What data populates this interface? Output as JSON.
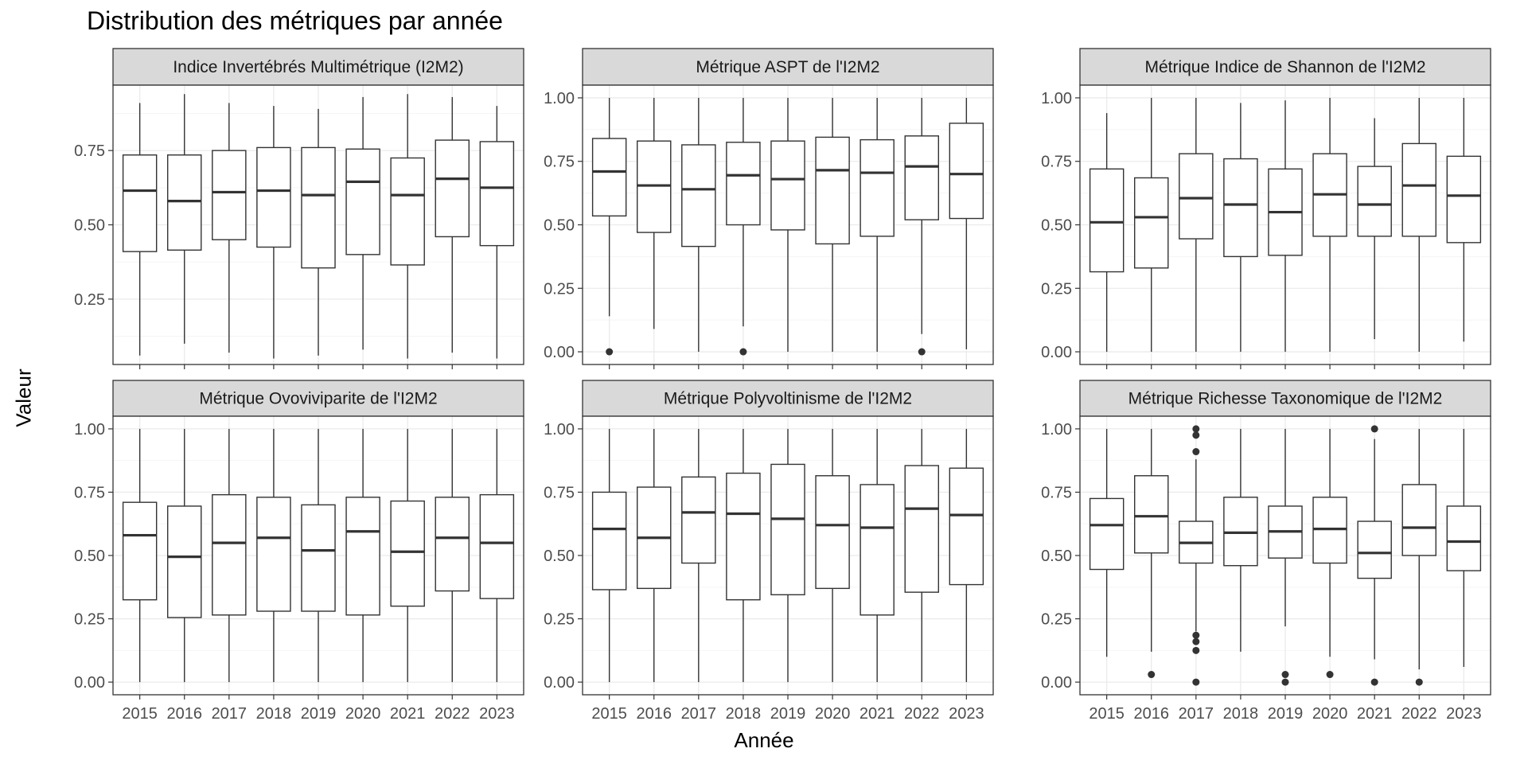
{
  "title": "Distribution des métriques par année",
  "xlabel": "Année",
  "ylabel": "Valeur",
  "colors": {
    "strip_fill": "#d9d9d9",
    "panel_border": "#333333",
    "grid_major": "#ebebeb",
    "grid_minor": "#f5f5f5",
    "box_stroke": "#333333",
    "tick_text": "#4d4d4d"
  },
  "chart_data": [
    {
      "type": "boxplot",
      "title": "Indice Invertébrés Multimétrique (I2M2)",
      "categories": [
        "2015",
        "2016",
        "2017",
        "2018",
        "2019",
        "2020",
        "2021",
        "2022",
        "2023"
      ],
      "ylim": [
        0.03,
        0.97
      ],
      "yticks": [
        0.25,
        0.5,
        0.75
      ],
      "ytick_labels": [
        "0.25",
        "0.50",
        "0.75"
      ],
      "boxes": [
        {
          "min": 0.06,
          "q1": 0.41,
          "median": 0.615,
          "q3": 0.735,
          "max": 0.91,
          "outliers": []
        },
        {
          "min": 0.1,
          "q1": 0.415,
          "median": 0.58,
          "q3": 0.735,
          "max": 0.94,
          "outliers": []
        },
        {
          "min": 0.07,
          "q1": 0.45,
          "median": 0.61,
          "q3": 0.75,
          "max": 0.91,
          "outliers": []
        },
        {
          "min": 0.05,
          "q1": 0.425,
          "median": 0.615,
          "q3": 0.76,
          "max": 0.9,
          "outliers": []
        },
        {
          "min": 0.06,
          "q1": 0.355,
          "median": 0.6,
          "q3": 0.76,
          "max": 0.89,
          "outliers": []
        },
        {
          "min": 0.08,
          "q1": 0.4,
          "median": 0.645,
          "q3": 0.755,
          "max": 0.93,
          "outliers": []
        },
        {
          "min": 0.05,
          "q1": 0.365,
          "median": 0.6,
          "q3": 0.725,
          "max": 0.94,
          "outliers": []
        },
        {
          "min": 0.07,
          "q1": 0.46,
          "median": 0.655,
          "q3": 0.785,
          "max": 0.93,
          "outliers": []
        },
        {
          "min": 0.05,
          "q1": 0.43,
          "median": 0.625,
          "q3": 0.78,
          "max": 0.9,
          "outliers": []
        }
      ]
    },
    {
      "type": "boxplot",
      "title": "Métrique ASPT de l'I2M2",
      "categories": [
        "2015",
        "2016",
        "2017",
        "2018",
        "2019",
        "2020",
        "2021",
        "2022",
        "2023"
      ],
      "ylim": [
        -0.05,
        1.05
      ],
      "yticks": [
        0,
        0.25,
        0.5,
        0.75,
        1.0
      ],
      "ytick_labels": [
        "0.00",
        "0.25",
        "0.50",
        "0.75",
        "1.00"
      ],
      "boxes": [
        {
          "min": 0.14,
          "q1": 0.535,
          "median": 0.71,
          "q3": 0.84,
          "max": 1.0,
          "outliers": [
            0.0
          ]
        },
        {
          "min": 0.09,
          "q1": 0.47,
          "median": 0.655,
          "q3": 0.83,
          "max": 1.0,
          "outliers": []
        },
        {
          "min": 0.0,
          "q1": 0.415,
          "median": 0.64,
          "q3": 0.815,
          "max": 1.0,
          "outliers": []
        },
        {
          "min": 0.1,
          "q1": 0.5,
          "median": 0.695,
          "q3": 0.825,
          "max": 1.0,
          "outliers": [
            0.0
          ]
        },
        {
          "min": 0.0,
          "q1": 0.48,
          "median": 0.68,
          "q3": 0.83,
          "max": 1.0,
          "outliers": []
        },
        {
          "min": 0.0,
          "q1": 0.425,
          "median": 0.715,
          "q3": 0.845,
          "max": 1.0,
          "outliers": []
        },
        {
          "min": 0.0,
          "q1": 0.455,
          "median": 0.705,
          "q3": 0.835,
          "max": 1.0,
          "outliers": []
        },
        {
          "min": 0.07,
          "q1": 0.52,
          "median": 0.73,
          "q3": 0.85,
          "max": 1.0,
          "outliers": [
            0.0
          ]
        },
        {
          "min": 0.01,
          "q1": 0.525,
          "median": 0.7,
          "q3": 0.9,
          "max": 1.0,
          "outliers": []
        }
      ]
    },
    {
      "type": "boxplot",
      "title": "Métrique Indice de Shannon de l'I2M2",
      "categories": [
        "2015",
        "2016",
        "2017",
        "2018",
        "2019",
        "2020",
        "2021",
        "2022",
        "2023"
      ],
      "ylim": [
        -0.05,
        1.05
      ],
      "yticks": [
        0,
        0.25,
        0.5,
        0.75,
        1.0
      ],
      "ytick_labels": [
        "0.00",
        "0.25",
        "0.50",
        "0.75",
        "1.00"
      ],
      "boxes": [
        {
          "min": 0.0,
          "q1": 0.315,
          "median": 0.51,
          "q3": 0.72,
          "max": 0.94,
          "outliers": []
        },
        {
          "min": 0.0,
          "q1": 0.33,
          "median": 0.53,
          "q3": 0.685,
          "max": 1.0,
          "outliers": []
        },
        {
          "min": 0.0,
          "q1": 0.445,
          "median": 0.605,
          "q3": 0.78,
          "max": 1.0,
          "outliers": []
        },
        {
          "min": 0.0,
          "q1": 0.375,
          "median": 0.58,
          "q3": 0.76,
          "max": 0.98,
          "outliers": []
        },
        {
          "min": 0.0,
          "q1": 0.38,
          "median": 0.55,
          "q3": 0.72,
          "max": 0.99,
          "outliers": []
        },
        {
          "min": 0.0,
          "q1": 0.455,
          "median": 0.62,
          "q3": 0.78,
          "max": 1.0,
          "outliers": []
        },
        {
          "min": 0.05,
          "q1": 0.455,
          "median": 0.58,
          "q3": 0.73,
          "max": 0.92,
          "outliers": []
        },
        {
          "min": 0.0,
          "q1": 0.455,
          "median": 0.655,
          "q3": 0.82,
          "max": 1.0,
          "outliers": []
        },
        {
          "min": 0.04,
          "q1": 0.43,
          "median": 0.615,
          "q3": 0.77,
          "max": 1.0,
          "outliers": []
        }
      ]
    },
    {
      "type": "boxplot",
      "title": "Métrique Ovoviviparite de l'I2M2",
      "categories": [
        "2015",
        "2016",
        "2017",
        "2018",
        "2019",
        "2020",
        "2021",
        "2022",
        "2023"
      ],
      "ylim": [
        -0.05,
        1.05
      ],
      "yticks": [
        0,
        0.25,
        0.5,
        0.75,
        1.0
      ],
      "ytick_labels": [
        "0.00",
        "0.25",
        "0.50",
        "0.75",
        "1.00"
      ],
      "boxes": [
        {
          "min": 0.0,
          "q1": 0.325,
          "median": 0.58,
          "q3": 0.71,
          "max": 1.0,
          "outliers": []
        },
        {
          "min": 0.0,
          "q1": 0.255,
          "median": 0.495,
          "q3": 0.695,
          "max": 1.0,
          "outliers": []
        },
        {
          "min": 0.0,
          "q1": 0.265,
          "median": 0.55,
          "q3": 0.74,
          "max": 1.0,
          "outliers": []
        },
        {
          "min": 0.0,
          "q1": 0.28,
          "median": 0.57,
          "q3": 0.73,
          "max": 1.0,
          "outliers": []
        },
        {
          "min": 0.0,
          "q1": 0.28,
          "median": 0.52,
          "q3": 0.7,
          "max": 1.0,
          "outliers": []
        },
        {
          "min": 0.0,
          "q1": 0.265,
          "median": 0.595,
          "q3": 0.73,
          "max": 1.0,
          "outliers": []
        },
        {
          "min": 0.0,
          "q1": 0.3,
          "median": 0.515,
          "q3": 0.715,
          "max": 1.0,
          "outliers": []
        },
        {
          "min": 0.0,
          "q1": 0.36,
          "median": 0.57,
          "q3": 0.73,
          "max": 1.0,
          "outliers": []
        },
        {
          "min": 0.0,
          "q1": 0.33,
          "median": 0.55,
          "q3": 0.74,
          "max": 1.0,
          "outliers": []
        }
      ]
    },
    {
      "type": "boxplot",
      "title": "Métrique Polyvoltinisme de l'I2M2",
      "categories": [
        "2015",
        "2016",
        "2017",
        "2018",
        "2019",
        "2020",
        "2021",
        "2022",
        "2023"
      ],
      "ylim": [
        -0.05,
        1.05
      ],
      "yticks": [
        0,
        0.25,
        0.5,
        0.75,
        1.0
      ],
      "ytick_labels": [
        "0.00",
        "0.25",
        "0.50",
        "0.75",
        "1.00"
      ],
      "boxes": [
        {
          "min": 0.0,
          "q1": 0.365,
          "median": 0.605,
          "q3": 0.75,
          "max": 1.0,
          "outliers": []
        },
        {
          "min": 0.0,
          "q1": 0.37,
          "median": 0.57,
          "q3": 0.77,
          "max": 1.0,
          "outliers": []
        },
        {
          "min": 0.0,
          "q1": 0.47,
          "median": 0.67,
          "q3": 0.81,
          "max": 1.0,
          "outliers": []
        },
        {
          "min": 0.0,
          "q1": 0.325,
          "median": 0.665,
          "q3": 0.825,
          "max": 1.0,
          "outliers": []
        },
        {
          "min": 0.0,
          "q1": 0.345,
          "median": 0.645,
          "q3": 0.86,
          "max": 1.0,
          "outliers": []
        },
        {
          "min": 0.0,
          "q1": 0.37,
          "median": 0.62,
          "q3": 0.815,
          "max": 1.0,
          "outliers": []
        },
        {
          "min": 0.0,
          "q1": 0.265,
          "median": 0.61,
          "q3": 0.78,
          "max": 1.0,
          "outliers": []
        },
        {
          "min": 0.0,
          "q1": 0.355,
          "median": 0.685,
          "q3": 0.855,
          "max": 1.0,
          "outliers": []
        },
        {
          "min": 0.0,
          "q1": 0.385,
          "median": 0.66,
          "q3": 0.845,
          "max": 1.0,
          "outliers": []
        }
      ]
    },
    {
      "type": "boxplot",
      "title": "Métrique Richesse Taxonomique de l'I2M2",
      "categories": [
        "2015",
        "2016",
        "2017",
        "2018",
        "2019",
        "2020",
        "2021",
        "2022",
        "2023"
      ],
      "ylim": [
        -0.05,
        1.05
      ],
      "yticks": [
        0,
        0.25,
        0.5,
        0.75,
        1.0
      ],
      "ytick_labels": [
        "0.00",
        "0.25",
        "0.50",
        "0.75",
        "1.00"
      ],
      "boxes": [
        {
          "min": 0.1,
          "q1": 0.445,
          "median": 0.62,
          "q3": 0.725,
          "max": 1.0,
          "outliers": []
        },
        {
          "min": 0.12,
          "q1": 0.51,
          "median": 0.655,
          "q3": 0.815,
          "max": 1.0,
          "outliers": [
            0.03
          ]
        },
        {
          "min": 0.2,
          "q1": 0.47,
          "median": 0.55,
          "q3": 0.635,
          "max": 0.88,
          "outliers": [
            1.0,
            0.975,
            0.91,
            0.185,
            0.16,
            0.125,
            0.0
          ]
        },
        {
          "min": 0.12,
          "q1": 0.46,
          "median": 0.59,
          "q3": 0.73,
          "max": 1.0,
          "outliers": []
        },
        {
          "min": 0.22,
          "q1": 0.49,
          "median": 0.595,
          "q3": 0.695,
          "max": 1.0,
          "outliers": [
            0.03,
            0.0
          ]
        },
        {
          "min": 0.1,
          "q1": 0.47,
          "median": 0.605,
          "q3": 0.73,
          "max": 1.0,
          "outliers": [
            0.03
          ]
        },
        {
          "min": 0.09,
          "q1": 0.41,
          "median": 0.51,
          "q3": 0.635,
          "max": 0.96,
          "outliers": [
            1.0,
            0.0
          ]
        },
        {
          "min": 0.05,
          "q1": 0.5,
          "median": 0.61,
          "q3": 0.78,
          "max": 1.0,
          "outliers": [
            0.0
          ]
        },
        {
          "min": 0.06,
          "q1": 0.44,
          "median": 0.555,
          "q3": 0.695,
          "max": 1.0,
          "outliers": []
        }
      ]
    }
  ]
}
